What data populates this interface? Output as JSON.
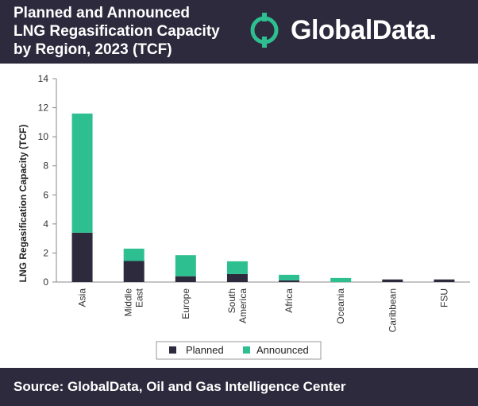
{
  "header": {
    "title": "Planned and Announced\nLNG Regasification Capacity\nby Region, 2023 (TCF)",
    "logo_text": "GlobalData."
  },
  "footer": {
    "source": "Source: GlobalData, Oil and Gas Intelligence Center"
  },
  "colors": {
    "header_bg": "#2d2a3d",
    "planned": "#2d2a3d",
    "announced": "#2ebf91",
    "logo_accent": "#2ebf91"
  },
  "icons": {
    "logo": "globaldata-logo-icon"
  },
  "chart_data": {
    "type": "bar",
    "stacked": true,
    "categories": [
      "Asia",
      "Middle\nEast",
      "Europe",
      "South\nAmerica",
      "Africa",
      "Oceania",
      "Caribbean",
      "FSU"
    ],
    "series": [
      {
        "name": "Planned",
        "values": [
          3.4,
          1.45,
          0.4,
          0.55,
          0.12,
          0.0,
          0.18,
          0.18
        ]
      },
      {
        "name": "Announced",
        "values": [
          8.2,
          0.85,
          1.45,
          0.88,
          0.38,
          0.28,
          0.0,
          0.0
        ]
      }
    ],
    "ylabel": "LNG Regasification Capacity (TCF)",
    "xlabel": "",
    "ylim": [
      0,
      14
    ],
    "yticks": [
      0,
      2,
      4,
      6,
      8,
      10,
      12,
      14
    ],
    "legend_position": "bottom",
    "grid": false
  }
}
